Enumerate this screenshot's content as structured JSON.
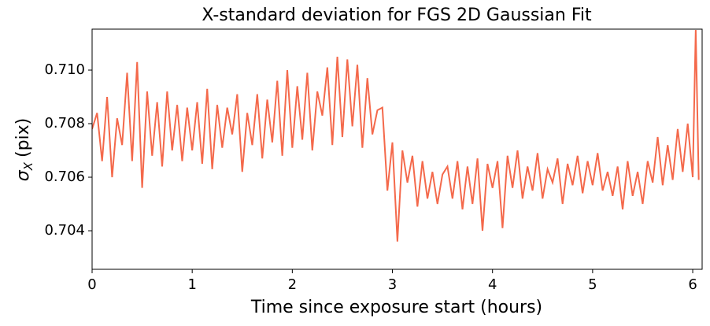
{
  "chart_data": {
    "type": "line",
    "title": "X-standard deviation for FGS 2D Gaussian Fit",
    "xlabel": "Time since exposure start (hours)",
    "ylabel": {
      "symbol": "σ",
      "subscript": "X",
      "unit": "(pix)"
    },
    "color": "#f4694b",
    "xlim": [
      0,
      6.094
    ],
    "ylim": [
      0.70256,
      0.71153
    ],
    "xticks": [
      0,
      1,
      2,
      3,
      4,
      5,
      6
    ],
    "yticks": [
      0.704,
      0.706,
      0.708,
      {
        "value": 0.71,
        "label": "0.710"
      }
    ],
    "x": [
      0,
      0.05,
      0.1,
      0.15,
      0.2,
      0.25,
      0.3,
      0.35,
      0.4,
      0.45,
      0.5,
      0.55,
      0.6,
      0.65,
      0.7,
      0.75,
      0.8,
      0.85,
      0.9,
      0.95,
      1,
      1.05,
      1.1,
      1.15,
      1.2,
      1.25,
      1.3,
      1.35,
      1.4,
      1.45,
      1.5,
      1.55,
      1.6,
      1.65,
      1.7,
      1.75,
      1.8,
      1.85,
      1.9,
      1.95,
      2,
      2.05,
      2.1,
      2.15,
      2.2,
      2.25,
      2.3,
      2.35,
      2.4,
      2.45,
      2.5,
      2.55,
      2.6,
      2.65,
      2.7,
      2.75,
      2.8,
      2.85,
      2.9,
      2.95,
      3,
      3.05,
      3.1,
      3.15,
      3.2,
      3.25,
      3.3,
      3.35,
      3.4,
      3.45,
      3.5,
      3.55,
      3.6,
      3.65,
      3.7,
      3.75,
      3.8,
      3.85,
      3.9,
      3.95,
      4,
      4.05,
      4.1,
      4.15,
      4.2,
      4.25,
      4.3,
      4.35,
      4.4,
      4.45,
      4.5,
      4.55,
      4.6,
      4.65,
      4.7,
      4.75,
      4.8,
      4.85,
      4.9,
      4.95,
      5,
      5.05,
      5.1,
      5.15,
      5.2,
      5.25,
      5.3,
      5.35,
      5.4,
      5.45,
      5.5,
      5.55,
      5.6,
      5.65,
      5.7,
      5.75,
      5.8,
      5.85,
      5.9,
      5.95,
      6,
      6.03,
      6.06
    ],
    "values": [
      0.7078,
      0.7084,
      0.7066,
      0.709,
      0.706,
      0.7082,
      0.7072,
      0.7099,
      0.7066,
      0.7103,
      0.7056,
      0.7092,
      0.7068,
      0.7088,
      0.7064,
      0.7092,
      0.707,
      0.7087,
      0.7066,
      0.7086,
      0.707,
      0.7088,
      0.7065,
      0.7093,
      0.7063,
      0.7087,
      0.7071,
      0.7086,
      0.7076,
      0.7091,
      0.7062,
      0.7084,
      0.7072,
      0.7091,
      0.7067,
      0.7089,
      0.7073,
      0.7096,
      0.7068,
      0.71,
      0.7071,
      0.7094,
      0.7074,
      0.7099,
      0.707,
      0.7092,
      0.7083,
      0.7101,
      0.7072,
      0.7105,
      0.7075,
      0.7104,
      0.7079,
      0.7102,
      0.7071,
      0.7097,
      0.7076,
      0.7085,
      0.7086,
      0.7055,
      0.7073,
      0.7036,
      0.707,
      0.7058,
      0.7068,
      0.7049,
      0.7066,
      0.7052,
      0.7062,
      0.705,
      0.7061,
      0.7064,
      0.7052,
      0.7066,
      0.7048,
      0.7064,
      0.705,
      0.7067,
      0.704,
      0.7065,
      0.7056,
      0.7066,
      0.7041,
      0.7068,
      0.7056,
      0.707,
      0.7052,
      0.7064,
      0.7055,
      0.7069,
      0.7052,
      0.7063,
      0.7058,
      0.7067,
      0.705,
      0.7065,
      0.7057,
      0.7068,
      0.7054,
      0.7066,
      0.7057,
      0.7069,
      0.7055,
      0.7062,
      0.7053,
      0.7064,
      0.7048,
      0.7066,
      0.7053,
      0.7062,
      0.705,
      0.7066,
      0.7058,
      0.7075,
      0.7057,
      0.7072,
      0.7059,
      0.7078,
      0.7062,
      0.708,
      0.706,
      0.7115,
      0.7059
    ]
  }
}
